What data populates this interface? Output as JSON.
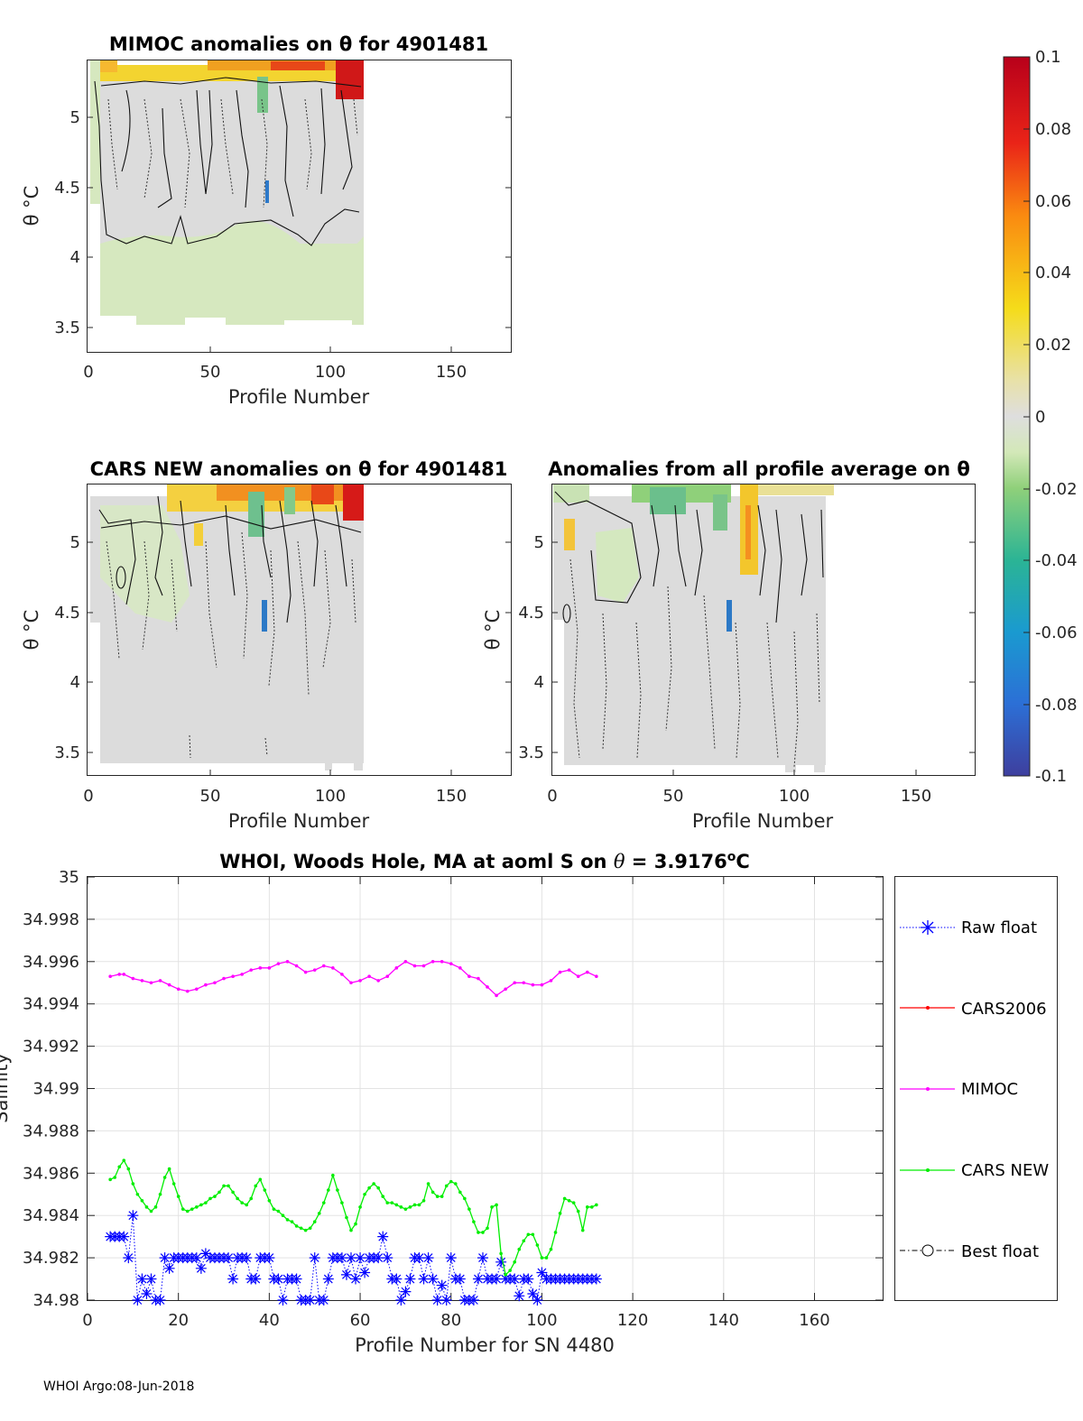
{
  "footer": "WHOI Argo:08-Jun-2018",
  "colorbar": {
    "ticks": [
      "0.1",
      "0.08",
      "0.06",
      "0.04",
      "0.02",
      "0",
      "-0.02",
      "-0.04",
      "-0.06",
      "-0.08",
      "-0.1"
    ]
  },
  "panels": [
    {
      "title": "MIMOC anomalies on θ  for 4901481",
      "xlabel": "Profile Number",
      "ylabel": "θ °C",
      "xticks": [
        "0",
        "50",
        "100",
        "150"
      ],
      "yticks": [
        "5",
        "4.5",
        "4",
        "3.5"
      ]
    },
    {
      "title": "CARS NEW anomalies on θ for 4901481",
      "xlabel": "Profile Number",
      "ylabel": "θ °C",
      "xticks": [
        "0",
        "50",
        "100",
        "150"
      ],
      "yticks": [
        "5",
        "4.5",
        "4",
        "3.5"
      ]
    },
    {
      "title": "Anomalies from all profile average on θ",
      "xlabel": "Profile Number",
      "ylabel": "θ °C",
      "xticks": [
        "0",
        "50",
        "100",
        "150"
      ],
      "yticks": [
        "5",
        "4.5",
        "4",
        "3.5"
      ]
    }
  ],
  "chart_data": [
    {
      "type": "heatmap",
      "title": "MIMOC anomalies on θ  for 4901481",
      "xlabel": "Profile Number",
      "ylabel": "θ °C",
      "xlim": [
        0,
        175
      ],
      "ylim": [
        3.33,
        5.4
      ],
      "clim": [
        -0.1,
        0.1
      ],
      "colormap": "parula-like (blue-green-grey-yellow-red)",
      "data_extent": {
        "profiles": [
          5,
          113
        ],
        "theta": [
          3.5,
          5.4
        ]
      }
    },
    {
      "type": "heatmap",
      "title": "CARS NEW anomalies on θ for 4901481",
      "xlabel": "Profile Number",
      "ylabel": "θ °C",
      "xlim": [
        0,
        175
      ],
      "ylim": [
        3.33,
        5.4
      ],
      "clim": [
        -0.1,
        0.1
      ],
      "data_extent": {
        "profiles": [
          5,
          113
        ],
        "theta": [
          3.38,
          5.4
        ]
      }
    },
    {
      "type": "heatmap",
      "title": "Anomalies from all profile average on θ",
      "xlabel": "Profile Number",
      "ylabel": "θ °C",
      "xlim": [
        0,
        175
      ],
      "ylim": [
        3.33,
        5.4
      ],
      "clim": [
        -0.1,
        0.1
      ],
      "data_extent": {
        "profiles": [
          5,
          113
        ],
        "theta": [
          3.35,
          5.4
        ]
      }
    },
    {
      "type": "line",
      "title": "WHOI, Woods Hole, MA at aoml S on θ = 3.9176°C",
      "title_parts": [
        "WHOI, Woods Hole, MA at aoml S on ",
        "θ",
        " = 3.9176",
        "o",
        "C"
      ],
      "xlabel": "Profile Number for SN 4480",
      "ylabel": "Salinity",
      "xlim": [
        0,
        175
      ],
      "ylim": [
        34.98,
        35.0
      ],
      "xticks": [
        "0",
        "20",
        "40",
        "60",
        "80",
        "100",
        "120",
        "140",
        "160"
      ],
      "yticks": [
        "35",
        "34.998",
        "34.996",
        "34.994",
        "34.992",
        "34.99",
        "34.988",
        "34.986",
        "34.984",
        "34.982",
        "34.98"
      ],
      "grid": true,
      "legend": "right",
      "series": [
        {
          "name": "Raw float",
          "color": "#0000ff",
          "marker": "asterisk",
          "line": "dotted",
          "x": [
            5,
            6,
            7,
            8,
            9,
            10,
            11,
            12,
            13,
            14,
            15,
            16,
            17,
            18,
            19,
            20,
            21,
            22,
            23,
            24,
            25,
            26,
            27,
            28,
            29,
            30,
            31,
            32,
            33,
            34,
            35,
            36,
            37,
            38,
            39,
            40,
            41,
            42,
            43,
            44,
            45,
            46,
            47,
            48,
            49,
            50,
            51,
            52,
            53,
            54,
            55,
            56,
            57,
            58,
            59,
            60,
            61,
            62,
            63,
            64,
            65,
            66,
            67,
            68,
            69,
            70,
            71,
            72,
            73,
            74,
            75,
            76,
            77,
            78,
            79,
            80,
            81,
            82,
            83,
            84,
            85,
            86,
            87,
            88,
            89,
            90,
            91,
            92,
            93,
            94,
            95,
            96,
            97,
            98,
            99,
            100,
            101,
            102,
            103,
            104,
            105,
            106,
            107,
            108,
            109,
            110,
            111,
            112
          ],
          "y": [
            34.983,
            34.983,
            34.983,
            34.983,
            34.982,
            34.984,
            34.98,
            34.981,
            34.9803,
            34.981,
            34.98,
            34.98,
            34.982,
            34.9815,
            34.982,
            34.982,
            34.982,
            34.982,
            34.982,
            34.982,
            34.9815,
            34.9822,
            34.982,
            34.982,
            34.982,
            34.982,
            34.982,
            34.981,
            34.982,
            34.982,
            34.982,
            34.981,
            34.981,
            34.982,
            34.982,
            34.982,
            34.981,
            34.981,
            34.98,
            34.981,
            34.981,
            34.981,
            34.98,
            34.98,
            34.98,
            34.982,
            34.98,
            34.98,
            34.981,
            34.982,
            34.982,
            34.982,
            34.9812,
            34.982,
            34.981,
            34.982,
            34.9813,
            34.982,
            34.982,
            34.982,
            34.983,
            34.982,
            34.981,
            34.981,
            34.98,
            34.9804,
            34.981,
            34.982,
            34.982,
            34.981,
            34.982,
            34.981,
            34.98,
            34.9807,
            34.98,
            34.982,
            34.981,
            34.981,
            34.98,
            34.98,
            34.98,
            34.981,
            34.982,
            34.981,
            34.981,
            34.981,
            34.9818,
            34.981,
            34.981,
            34.981,
            34.9802,
            34.981,
            34.981,
            34.9803,
            34.98,
            34.9813,
            34.981,
            34.981,
            34.981,
            34.981,
            34.981,
            34.981,
            34.981,
            34.981,
            34.981,
            34.981,
            34.981,
            34.981
          ]
        },
        {
          "name": "CARS2006",
          "color": "#ff0000",
          "marker": "dot",
          "line": "solid",
          "x": [],
          "y": []
        },
        {
          "name": "MIMOC",
          "color": "#ff00ff",
          "marker": "dot",
          "line": "solid",
          "x": [
            5,
            7,
            8,
            10,
            12,
            14,
            16,
            18,
            20,
            22,
            24,
            26,
            28,
            30,
            32,
            34,
            36,
            38,
            40,
            42,
            44,
            46,
            48,
            50,
            52,
            54,
            56,
            58,
            60,
            62,
            64,
            66,
            68,
            70,
            72,
            74,
            76,
            78,
            80,
            82,
            84,
            86,
            88,
            90,
            92,
            94,
            96,
            98,
            100,
            102,
            104,
            106,
            108,
            110,
            112
          ],
          "y": [
            34.9953,
            34.9954,
            34.9954,
            34.9952,
            34.9951,
            34.995,
            34.9951,
            34.9949,
            34.9947,
            34.9946,
            34.9947,
            34.9949,
            34.995,
            34.9952,
            34.9953,
            34.9954,
            34.9956,
            34.9957,
            34.9957,
            34.9959,
            34.996,
            34.9958,
            34.9955,
            34.9956,
            34.9958,
            34.9957,
            34.9954,
            34.995,
            34.9951,
            34.9953,
            34.9951,
            34.9953,
            34.9957,
            34.996,
            34.9958,
            34.9958,
            34.996,
            34.996,
            34.9959,
            34.9957,
            34.9953,
            34.9952,
            34.9948,
            34.9944,
            34.9947,
            34.995,
            34.995,
            34.9949,
            34.9949,
            34.9951,
            34.9955,
            34.9956,
            34.9953,
            34.9955,
            34.9953
          ]
        },
        {
          "name": "CARS NEW",
          "color": "#00ee00",
          "marker": "dot",
          "line": "solid",
          "x": [
            5,
            6,
            7,
            8,
            9,
            10,
            11,
            12,
            13,
            14,
            15,
            16,
            17,
            18,
            19,
            20,
            21,
            22,
            23,
            24,
            25,
            26,
            27,
            28,
            29,
            30,
            31,
            32,
            33,
            34,
            35,
            36,
            37,
            38,
            39,
            40,
            41,
            42,
            43,
            44,
            45,
            46,
            47,
            48,
            49,
            50,
            51,
            52,
            53,
            54,
            55,
            56,
            57,
            58,
            59,
            60,
            61,
            62,
            63,
            64,
            65,
            66,
            67,
            68,
            69,
            70,
            71,
            72,
            73,
            74,
            75,
            76,
            77,
            78,
            79,
            80,
            81,
            82,
            83,
            84,
            85,
            86,
            87,
            88,
            89,
            90,
            91,
            92,
            93,
            94,
            95,
            96,
            97,
            98,
            99,
            100,
            101,
            102,
            103,
            104,
            105,
            106,
            107,
            108,
            109,
            110,
            111,
            112
          ],
          "y": [
            34.9857,
            34.9858,
            34.9863,
            34.9866,
            34.9862,
            34.9855,
            34.985,
            34.9847,
            34.9844,
            34.9842,
            34.9844,
            34.985,
            34.9858,
            34.9862,
            34.9855,
            34.9849,
            34.9843,
            34.9842,
            34.9843,
            34.9844,
            34.9845,
            34.9846,
            34.9848,
            34.9849,
            34.9851,
            34.9854,
            34.9854,
            34.9851,
            34.9848,
            34.9846,
            34.9845,
            34.9848,
            34.9854,
            34.9857,
            34.9852,
            34.9847,
            34.9843,
            34.9842,
            34.984,
            34.9838,
            34.9837,
            34.9835,
            34.9834,
            34.9833,
            34.9834,
            34.9837,
            34.9841,
            34.9846,
            34.9852,
            34.9859,
            34.9852,
            34.9846,
            34.9839,
            34.9833,
            34.9836,
            34.9844,
            34.985,
            34.9853,
            34.9855,
            34.9853,
            34.9849,
            34.9846,
            34.9846,
            34.9845,
            34.9844,
            34.9843,
            34.9844,
            34.9845,
            34.9845,
            34.9847,
            34.9855,
            34.9851,
            34.9849,
            34.9849,
            34.9854,
            34.9856,
            34.9855,
            34.9851,
            34.9848,
            34.9843,
            34.9837,
            34.9832,
            34.9832,
            34.9834,
            34.9844,
            34.9845,
            34.9822,
            34.9812,
            34.9814,
            34.9818,
            34.9824,
            34.9828,
            34.9831,
            34.9831,
            34.9826,
            34.982,
            34.982,
            34.9824,
            34.9832,
            34.9841,
            34.9848,
            34.9847,
            34.9846,
            34.9842,
            34.9833,
            34.9844,
            34.9844,
            34.9845
          ]
        },
        {
          "name": "Best float",
          "color": "#000000",
          "marker": "circle",
          "line": "dash-dot",
          "x": [],
          "y": []
        }
      ]
    }
  ]
}
